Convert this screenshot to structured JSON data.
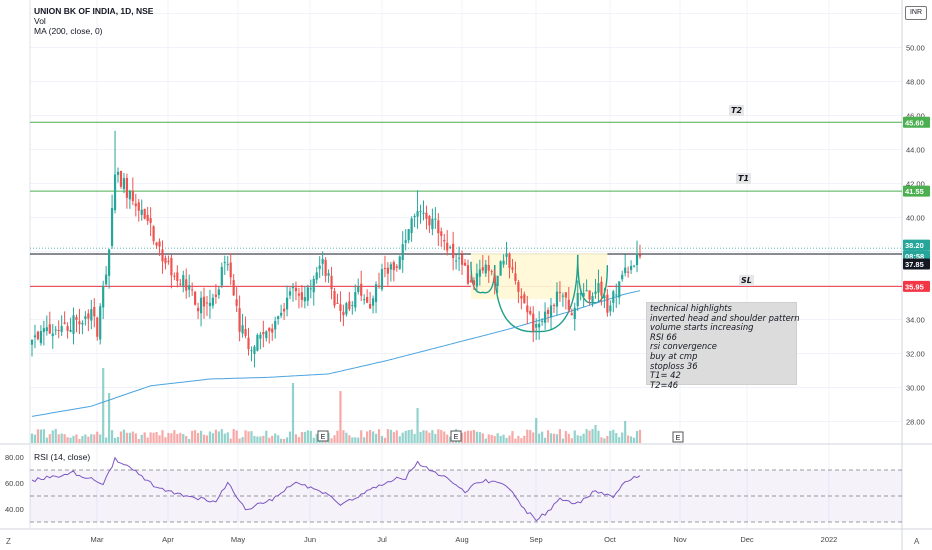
{
  "header": {
    "symbol_line": "UNION BK OF INDIA, 1D, NSE",
    "vol_label": "Vol",
    "ma_label": "MA (200, close, 0)",
    "currency": "INR"
  },
  "rsi_panel": {
    "label": "RSI (14, close)",
    "ticks": [
      "80.00",
      "60.00",
      "40.00"
    ]
  },
  "annotations": {
    "t2_label": "T2",
    "t1_label": "T1",
    "sl_label": "SL",
    "earnings_marker": "E",
    "notes": [
      "technical highlights",
      "inverted head and shoulder pattern",
      "volume starts increasing",
      "RSI 66",
      "rsi convergence",
      "buy at cmp",
      "stoploss 36",
      "T1= 42",
      "T2=46"
    ]
  },
  "price_tags": {
    "t2": "45.60",
    "t1": "41.55",
    "last": "38.20",
    "countdown": "08:58",
    "black_line": "37.85",
    "sl": "35.95"
  },
  "colors": {
    "up": "#26a69a",
    "down": "#ef5350",
    "target_line": "#4caf50",
    "sl_line": "#f23645",
    "ma_line": "#4aa3df",
    "rsi_line": "#7e57c2",
    "pattern_fill": "#fff8d6"
  },
  "corner_labels": {
    "bottom_left": "Z",
    "bottom_right": "A"
  },
  "chart_data": {
    "type": "candlestick",
    "ylim": [
      27,
      52
    ],
    "y_ticks": [
      28,
      30,
      32,
      34,
      36,
      38,
      40,
      42,
      44,
      46,
      48,
      50,
      52
    ],
    "x_ticks": [
      "Mar",
      "Apr",
      "May",
      "Jun",
      "Jul",
      "Aug",
      "Sep",
      "Oct",
      "Nov",
      "Dec",
      "2022"
    ],
    "horizontal_levels": [
      {
        "label": "T2",
        "value": 45.6
      },
      {
        "label": "T1",
        "value": 41.55
      },
      {
        "label": "",
        "value": 37.85
      },
      {
        "label": "SL",
        "value": 35.95
      }
    ],
    "last_price": 38.2,
    "anchors": [
      [
        0,
        33.2
      ],
      [
        12,
        33.6
      ],
      [
        20,
        34.6
      ],
      [
        22,
        33.4
      ],
      [
        26,
        38.0
      ],
      [
        28,
        42.8
      ],
      [
        32,
        41.6
      ],
      [
        40,
        39.4
      ],
      [
        46,
        37.0
      ],
      [
        52,
        36.0
      ],
      [
        56,
        34.8
      ],
      [
        62,
        35.4
      ],
      [
        65,
        37.8
      ],
      [
        70,
        33.6
      ],
      [
        74,
        32.3
      ],
      [
        82,
        33.8
      ],
      [
        88,
        36.0
      ],
      [
        92,
        35.2
      ],
      [
        98,
        37.4
      ],
      [
        104,
        34.2
      ],
      [
        110,
        35.8
      ],
      [
        114,
        35.0
      ],
      [
        118,
        36.8
      ],
      [
        124,
        37.6
      ],
      [
        130,
        40.7
      ],
      [
        136,
        39.6
      ],
      [
        142,
        37.9
      ],
      [
        148,
        36.2
      ],
      [
        152,
        37.2
      ],
      [
        156,
        36.3
      ],
      [
        160,
        37.7
      ],
      [
        164,
        35.6
      ],
      [
        168,
        34.0
      ],
      [
        170,
        33.3
      ],
      [
        174,
        34.6
      ],
      [
        178,
        35.6
      ],
      [
        182,
        34.5
      ],
      [
        186,
        35.8
      ],
      [
        188,
        35.3
      ],
      [
        191,
        36.0
      ],
      [
        194,
        34.6
      ],
      [
        196,
        35.4
      ],
      [
        199,
        36.6
      ],
      [
        202,
        37.3
      ],
      [
        205,
        38.1
      ]
    ],
    "ma200_anchors": [
      [
        0,
        28.3
      ],
      [
        20,
        28.9
      ],
      [
        40,
        30.1
      ],
      [
        60,
        30.5
      ],
      [
        80,
        30.6
      ],
      [
        100,
        30.8
      ],
      [
        120,
        31.6
      ],
      [
        140,
        32.5
      ],
      [
        160,
        33.4
      ],
      [
        180,
        34.4
      ],
      [
        200,
        35.5
      ],
      [
        205,
        35.7
      ]
    ],
    "rsi_anchors": [
      [
        0,
        62
      ],
      [
        14,
        68
      ],
      [
        24,
        60
      ],
      [
        28,
        78
      ],
      [
        34,
        70
      ],
      [
        42,
        56
      ],
      [
        52,
        50
      ],
      [
        62,
        46
      ],
      [
        66,
        60
      ],
      [
        72,
        40
      ],
      [
        80,
        46
      ],
      [
        88,
        60
      ],
      [
        96,
        56
      ],
      [
        104,
        44
      ],
      [
        112,
        52
      ],
      [
        120,
        62
      ],
      [
        126,
        64
      ],
      [
        130,
        76
      ],
      [
        138,
        66
      ],
      [
        146,
        54
      ],
      [
        152,
        62
      ],
      [
        160,
        58
      ],
      [
        166,
        40
      ],
      [
        170,
        32
      ],
      [
        174,
        38
      ],
      [
        178,
        48
      ],
      [
        184,
        44
      ],
      [
        190,
        54
      ],
      [
        196,
        50
      ],
      [
        200,
        62
      ],
      [
        205,
        66
      ]
    ],
    "volume_spikes": [
      [
        24,
        75
      ],
      [
        26,
        50
      ],
      [
        88,
        60
      ],
      [
        104,
        52
      ],
      [
        130,
        35
      ],
      [
        170,
        25
      ],
      [
        190,
        18
      ],
      [
        200,
        22
      ]
    ],
    "inverse_head_shoulders": {
      "left_shoulder": [
        [
          148,
          37.4
        ],
        [
          152,
          35.6
        ],
        [
          156,
          37.2
        ]
      ],
      "head": [
        [
          156,
          37.2
        ],
        [
          170,
          33.3
        ],
        [
          184,
          37.8
        ]
      ],
      "right_shoulder": [
        [
          184,
          37.8
        ],
        [
          189,
          35.0
        ],
        [
          194,
          37.2
        ]
      ]
    }
  }
}
